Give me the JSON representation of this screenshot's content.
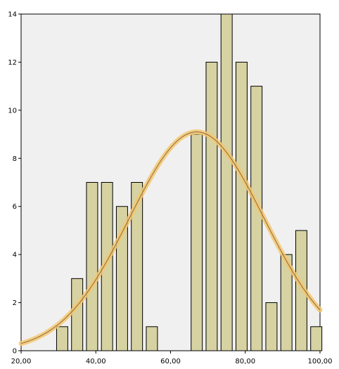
{
  "chart_data": {
    "type": "bar",
    "title": "",
    "xlabel": "",
    "ylabel": "",
    "xlim": [
      20,
      100
    ],
    "ylim": [
      0,
      14
    ],
    "x_ticks": [
      "20,00",
      "40,00",
      "60,00",
      "80,00",
      "100,00"
    ],
    "y_ticks": [
      "0",
      "2",
      "4",
      "6",
      "8",
      "10",
      "12",
      "14"
    ],
    "bar_width": 3,
    "bars": [
      {
        "x": 31,
        "value": 1
      },
      {
        "x": 35,
        "value": 3
      },
      {
        "x": 39,
        "value": 7
      },
      {
        "x": 43,
        "value": 7
      },
      {
        "x": 47,
        "value": 6
      },
      {
        "x": 51,
        "value": 7
      },
      {
        "x": 55,
        "value": 1
      },
      {
        "x": 67,
        "value": 9
      },
      {
        "x": 71,
        "value": 12
      },
      {
        "x": 75,
        "value": 14
      },
      {
        "x": 79,
        "value": 12
      },
      {
        "x": 83,
        "value": 11
      },
      {
        "x": 87,
        "value": 2
      },
      {
        "x": 91,
        "value": 4
      },
      {
        "x": 95,
        "value": 5
      },
      {
        "x": 99,
        "value": 1
      }
    ],
    "normal_curve": {
      "mean": 67,
      "sd": 18.0,
      "peak": 9.1
    },
    "grid": false,
    "colors": {
      "bar_fill": "#d6d2a2",
      "bar_stroke": "#000000",
      "plot_bg": "#f0f0f0",
      "curve_glow": "#f5c770",
      "curve_line": "#8a6a3a"
    }
  }
}
